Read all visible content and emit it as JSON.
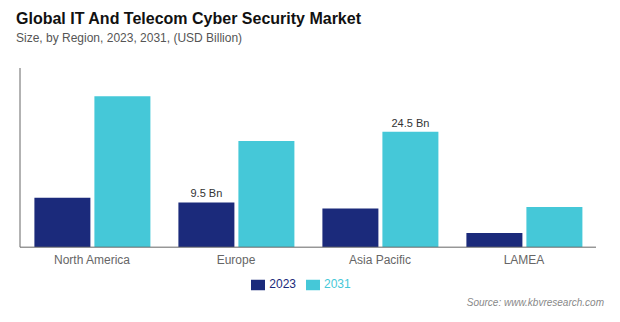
{
  "chart_data": {
    "type": "bar",
    "title": "Global IT And Telecom Cyber Security Market",
    "subtitle": "Size, by Region, 2023, 2031, (USD Billion)",
    "source": "Source: www.kbvresearch.com",
    "categories": [
      "North America",
      "Europe",
      "Asia Pacific",
      "LAMEA"
    ],
    "series": [
      {
        "name": "2023",
        "color": "#1b2a7b",
        "values": [
          10.5,
          9.5,
          8.2,
          3.0
        ],
        "value_labels": [
          null,
          "9.5 Bn",
          null,
          null
        ]
      },
      {
        "name": "2031",
        "color": "#45c8d8",
        "values": [
          32.0,
          22.5,
          24.5,
          8.5
        ],
        "value_labels": [
          null,
          null,
          "24.5 Bn",
          null
        ]
      }
    ],
    "ylim": [
      0,
      38
    ],
    "grid": false,
    "legend": "bottom",
    "tick_labels": "x"
  }
}
